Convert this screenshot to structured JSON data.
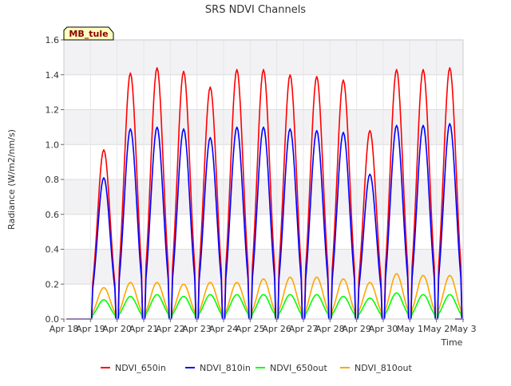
{
  "chart_data": {
    "type": "line",
    "title": "SRS NDVI Channels",
    "xlabel": "Time",
    "ylabel": "Radiance (W/m2/nm/s)",
    "annotation": "MB_tule",
    "ylim": [
      0,
      1.6
    ],
    "xlim": [
      0,
      15
    ],
    "yticks": [
      0.0,
      0.2,
      0.4,
      0.6,
      0.8,
      1.0,
      1.2,
      1.4,
      1.6
    ],
    "ytick_labels": [
      "0.0",
      "0.2",
      "0.4",
      "0.6",
      "0.8",
      "1.0",
      "1.2",
      "1.4",
      "1.6"
    ],
    "xtick_labels": [
      "Apr 18",
      "Apr 19",
      "Apr 20",
      "Apr 21",
      "Apr 22",
      "Apr 23",
      "Apr 24",
      "Apr 25",
      "Apr 26",
      "Apr 27",
      "Apr 28",
      "Apr 29",
      "Apr 30",
      "May 1",
      "May 2",
      "May 3"
    ],
    "grid": true,
    "legend_position": "bottom",
    "series": [
      {
        "name": "NDVI_650in",
        "color": "#ff0000",
        "peaks": [
          0.97,
          1.41,
          1.44,
          1.42,
          1.33,
          1.43,
          1.43,
          1.4,
          1.39,
          1.37,
          1.08,
          1.43,
          1.43,
          1.44
        ]
      },
      {
        "name": "NDVI_810in",
        "color": "#0000ff",
        "peaks": [
          0.81,
          1.09,
          1.1,
          1.09,
          1.04,
          1.1,
          1.1,
          1.09,
          1.08,
          1.07,
          0.83,
          1.11,
          1.11,
          1.12
        ]
      },
      {
        "name": "NDVI_650out",
        "color": "#00ff00",
        "peaks": [
          0.11,
          0.13,
          0.14,
          0.13,
          0.14,
          0.14,
          0.14,
          0.14,
          0.14,
          0.13,
          0.12,
          0.15,
          0.14,
          0.14
        ]
      },
      {
        "name": "NDVI_810out",
        "color": "#ffa500",
        "peaks": [
          0.18,
          0.21,
          0.21,
          0.2,
          0.21,
          0.21,
          0.23,
          0.24,
          0.24,
          0.23,
          0.21,
          0.26,
          0.25,
          0.25
        ]
      }
    ]
  }
}
